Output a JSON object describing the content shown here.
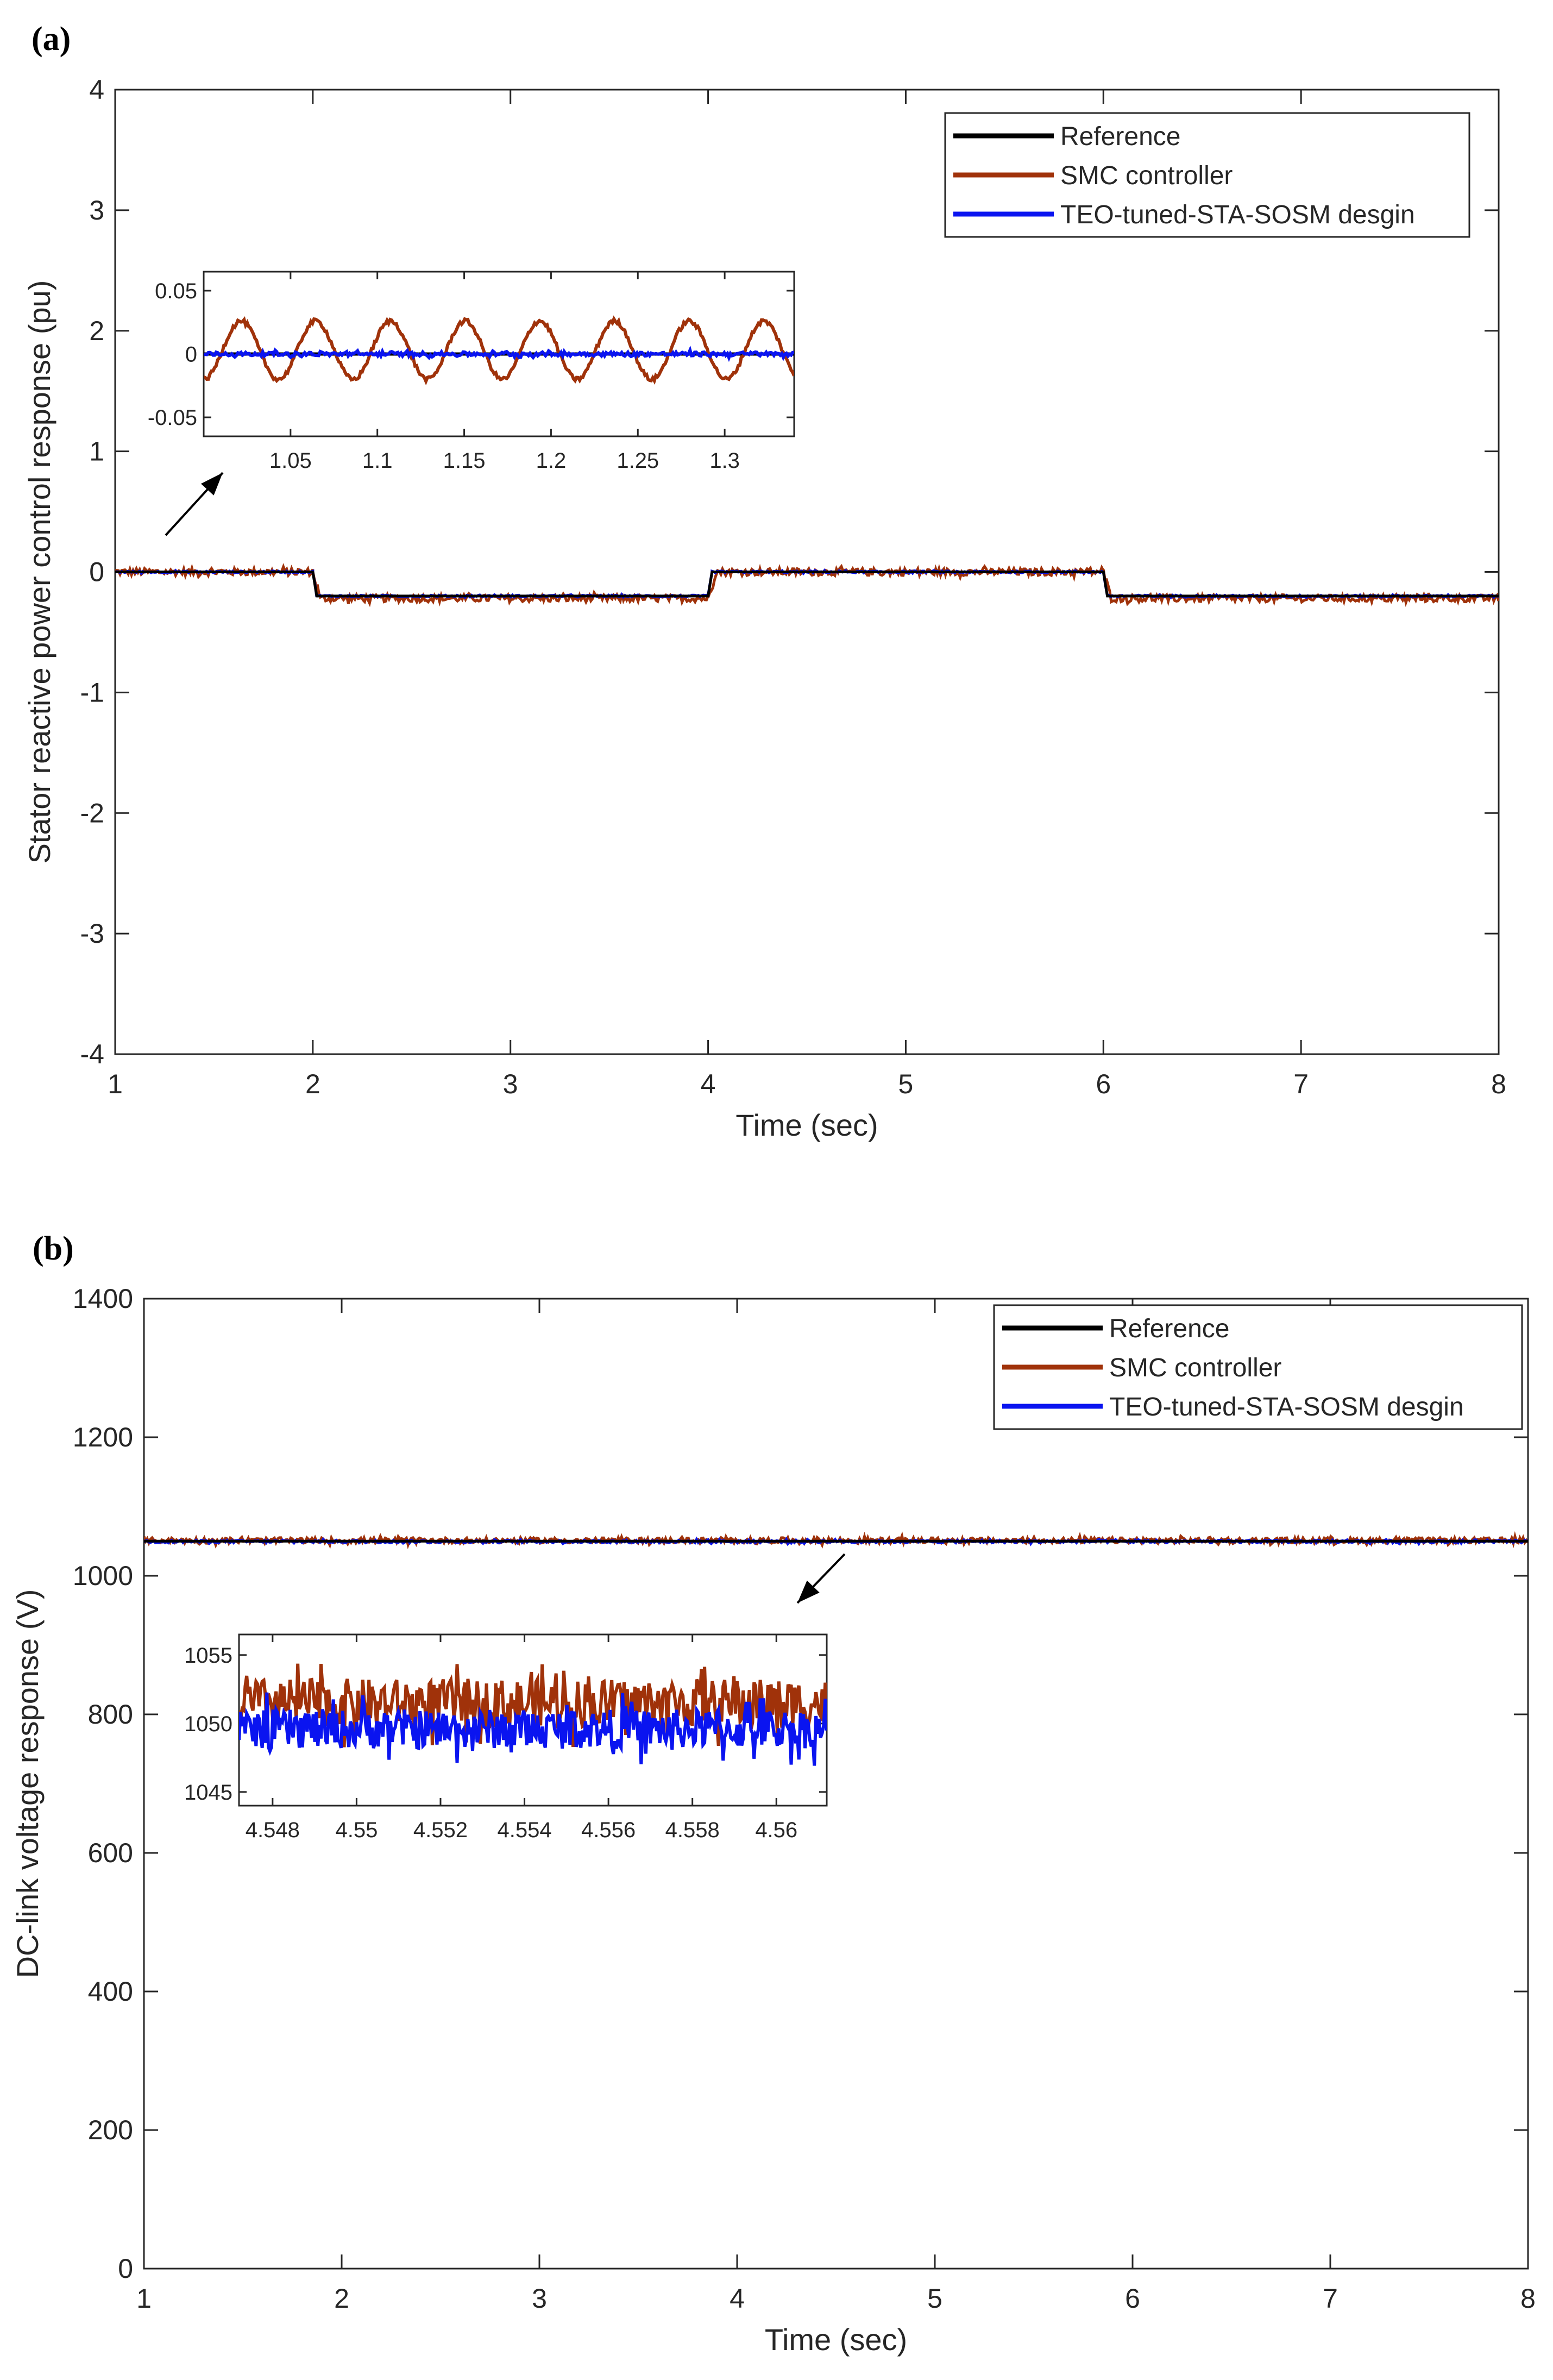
{
  "colors": {
    "reference": "#000000",
    "smc": "#a0320a",
    "teo": "#0a14f0",
    "axis": "#262626"
  },
  "chart_data": [
    {
      "panel_label": "(a)",
      "type": "line",
      "xlabel": "Time (sec)",
      "ylabel": "Stator reactive power control response (pu)",
      "xlim": [
        1,
        8
      ],
      "ylim": [
        -4,
        4
      ],
      "xticks": [
        1,
        2,
        3,
        4,
        5,
        6,
        7,
        8
      ],
      "yticks": [
        -4,
        -3,
        -2,
        -1,
        0,
        1,
        2,
        3,
        4
      ],
      "legend_position": "top-right",
      "series": [
        {
          "name": "Reference",
          "color": "#000000",
          "x": [
            1,
            2,
            2.02,
            4,
            4.02,
            6,
            6.02,
            8
          ],
          "y": [
            0,
            0,
            -0.2,
            -0.2,
            0,
            0,
            -0.2,
            -0.2
          ]
        },
        {
          "name": "SMC controller",
          "color": "#a0320a",
          "x": [
            1,
            2,
            2.04,
            4,
            4.04,
            6,
            6.04,
            8
          ],
          "y": [
            0,
            0,
            -0.22,
            -0.22,
            0,
            0,
            -0.22,
            -0.22
          ],
          "noise_amplitude": 0.03
        },
        {
          "name": "TEO-tuned-STA-SOSM desgin",
          "color": "#0a14f0",
          "x": [
            1,
            2,
            2.02,
            4,
            4.02,
            6,
            6.02,
            8
          ],
          "y": [
            0,
            0,
            -0.2,
            -0.2,
            0,
            0,
            -0.2,
            -0.2
          ],
          "noise_amplitude": 0.008
        }
      ],
      "inset": {
        "xlim": [
          1.0,
          1.34
        ],
        "ylim": [
          -0.065,
          0.065
        ],
        "xticks": [
          1.05,
          1.1,
          1.15,
          1.2,
          1.25,
          1.3
        ],
        "xtick_labels": [
          "1.05",
          "1.1",
          "1.15",
          "1.2",
          "1.25",
          "1.3"
        ],
        "yticks": [
          0.05,
          0,
          -0.05
        ],
        "ytick_labels": [
          "0.05",
          "0",
          "-0.05"
        ],
        "series": [
          {
            "name": "Reference",
            "color": "#000000",
            "type": "constant",
            "value": 0
          },
          {
            "name": "SMC controller",
            "color": "#a0320a",
            "type": "sine",
            "offset": 0.003,
            "amplitude": 0.023,
            "period": 0.043,
            "phase_start": 1.0
          },
          {
            "name": "TEO-tuned-STA-SOSM desgin",
            "color": "#0a14f0",
            "type": "noise",
            "offset": 0.0,
            "amplitude": 0.002
          }
        ]
      }
    },
    {
      "panel_label": "(b)",
      "type": "line",
      "xlabel": "Time (sec)",
      "ylabel": "DC-link voltage response (V)",
      "xlim": [
        1,
        8
      ],
      "ylim": [
        0,
        1400
      ],
      "xticks": [
        1,
        2,
        3,
        4,
        5,
        6,
        7,
        8
      ],
      "yticks": [
        0,
        200,
        400,
        600,
        800,
        1000,
        1200,
        1400
      ],
      "legend_position": "top-right",
      "series": [
        {
          "name": "Reference",
          "color": "#000000",
          "x": [
            1,
            8
          ],
          "y": [
            1050,
            1050
          ]
        },
        {
          "name": "SMC controller",
          "color": "#a0320a",
          "x": [
            1,
            8
          ],
          "y": [
            1051,
            1051
          ],
          "noise_amplitude": 4
        },
        {
          "name": "TEO-tuned-STA-SOSM desgin",
          "color": "#0a14f0",
          "x": [
            1,
            8
          ],
          "y": [
            1049.5,
            1049.5
          ],
          "noise_amplitude": 2
        }
      ],
      "inset": {
        "xlim": [
          4.5472,
          4.5612
        ],
        "ylim": [
          1044,
          1056.5
        ],
        "xticks": [
          4.548,
          4.55,
          4.552,
          4.554,
          4.556,
          4.558,
          4.56
        ],
        "xtick_labels": [
          "4.548",
          "4.55",
          "4.552",
          "4.554",
          "4.556",
          "4.558",
          "4.56"
        ],
        "yticks": [
          1055,
          1050,
          1045
        ],
        "ytick_labels": [
          "1055",
          "1050",
          "1045"
        ],
        "series": [
          {
            "name": "SMC controller",
            "color": "#a0320a",
            "type": "noise",
            "offset": 1051.5,
            "amplitude": 2.2
          },
          {
            "name": "TEO-tuned-STA-SOSM desgin",
            "color": "#0a14f0",
            "type": "noise",
            "offset": 1049.6,
            "amplitude": 1.8
          }
        ]
      }
    }
  ]
}
